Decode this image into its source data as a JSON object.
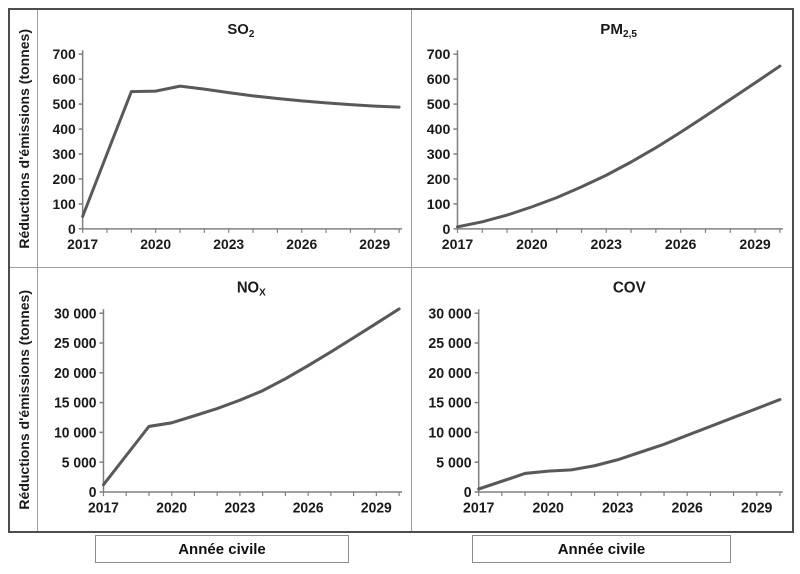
{
  "figure": {
    "ylabel": "Réductions d'émissions (tonnes)",
    "xlabel": "Année civile"
  },
  "colors": {
    "line": "#595959",
    "axis": "#808080",
    "text": "#1a1a1a",
    "border_outer": "#4d4d4d",
    "border_inner": "#9e9e9e"
  },
  "chart_data": [
    {
      "type": "line",
      "title": {
        "main": "SO",
        "sub": "2"
      },
      "x": [
        2017,
        2018,
        2019,
        2020,
        2021,
        2022,
        2023,
        2024,
        2025,
        2026,
        2027,
        2028,
        2029,
        2030
      ],
      "values": [
        50,
        300,
        550,
        552,
        572,
        560,
        546,
        533,
        522,
        513,
        505,
        498,
        492,
        488
      ],
      "ylim": [
        0,
        700
      ],
      "ytick_labels": [
        "0",
        "100",
        "200",
        "300",
        "400",
        "500",
        "600",
        "700"
      ],
      "xtick_labels": [
        "2017",
        "2020",
        "2023",
        "2026",
        "2029"
      ],
      "grid": false,
      "legend": false
    },
    {
      "type": "line",
      "title": {
        "main": "PM",
        "sub": "2,5"
      },
      "x": [
        2017,
        2018,
        2019,
        2020,
        2021,
        2022,
        2023,
        2024,
        2025,
        2026,
        2027,
        2028,
        2029,
        2030
      ],
      "values": [
        8,
        28,
        55,
        88,
        125,
        168,
        215,
        268,
        325,
        387,
        452,
        518,
        585,
        652
      ],
      "ylim": [
        0,
        700
      ],
      "ytick_labels": [
        "0",
        "100",
        "200",
        "300",
        "400",
        "500",
        "600",
        "700"
      ],
      "xtick_labels": [
        "2017",
        "2020",
        "2023",
        "2026",
        "2029"
      ],
      "grid": false,
      "legend": false
    },
    {
      "type": "line",
      "title": {
        "main": "NO",
        "sub": "X"
      },
      "x": [
        2017,
        2018,
        2019,
        2020,
        2021,
        2022,
        2023,
        2024,
        2025,
        2026,
        2027,
        2028,
        2029,
        2030
      ],
      "values": [
        1200,
        6100,
        11000,
        11600,
        12800,
        14000,
        15400,
        17000,
        19000,
        21200,
        23500,
        25900,
        28300,
        30700
      ],
      "ylim": [
        0,
        30000
      ],
      "ytick_labels": [
        "0",
        "5 000",
        "10 000",
        "15 000",
        "20 000",
        "25 000",
        "30 000"
      ],
      "xtick_labels": [
        "2017",
        "2020",
        "2023",
        "2026",
        "2029"
      ],
      "grid": false,
      "legend": false
    },
    {
      "type": "line",
      "title": {
        "main": "COV",
        "sub": ""
      },
      "x": [
        2017,
        2018,
        2019,
        2020,
        2021,
        2022,
        2023,
        2024,
        2025,
        2026,
        2027,
        2028,
        2029,
        2030
      ],
      "values": [
        500,
        1800,
        3100,
        3500,
        3700,
        4400,
        5400,
        6700,
        8000,
        9500,
        11000,
        12500,
        14000,
        15500
      ],
      "ylim": [
        0,
        30000
      ],
      "ytick_labels": [
        "0",
        "5 000",
        "10 000",
        "15 000",
        "20 000",
        "25 000",
        "30 000"
      ],
      "xtick_labels": [
        "2017",
        "2020",
        "2023",
        "2026",
        "2029"
      ],
      "grid": false,
      "legend": false
    }
  ]
}
